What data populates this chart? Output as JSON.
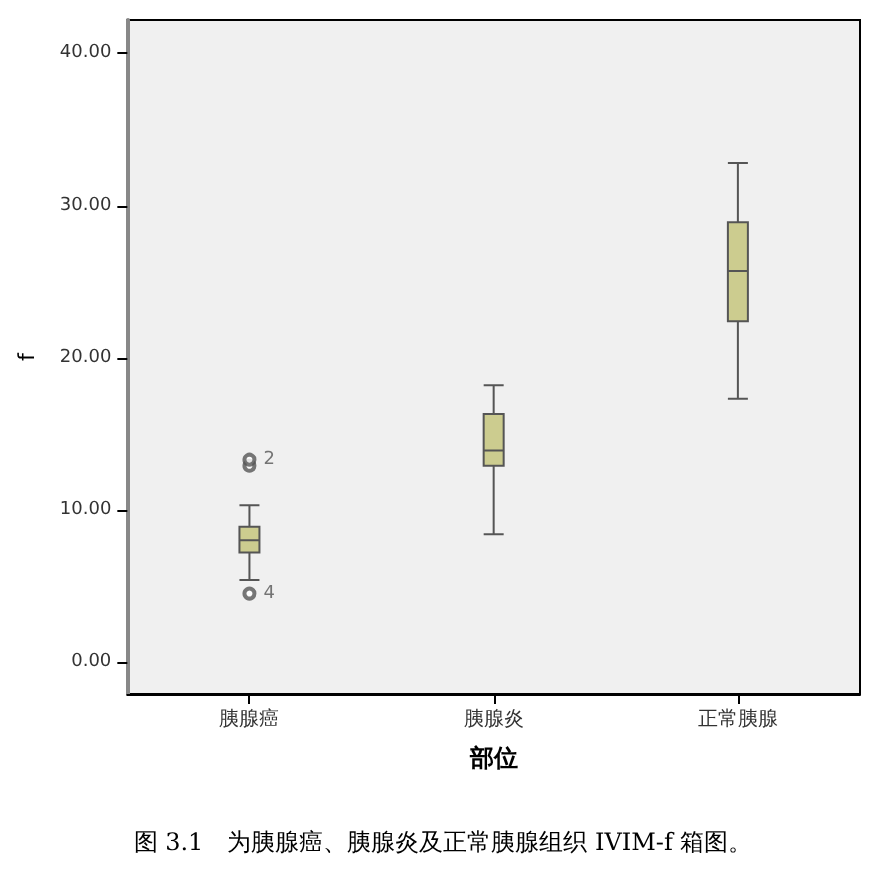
{
  "chart_data": {
    "type": "box",
    "xlabel": "部位",
    "ylabel": "f",
    "categories": [
      "胰腺癌",
      "胰腺炎",
      "正常胰腺"
    ],
    "boxes": [
      {
        "low": 5.4,
        "q1": 7.2,
        "median": 8.0,
        "q3": 8.9,
        "high": 10.3
      },
      {
        "low": 8.4,
        "q1": 12.9,
        "median": 13.9,
        "q3": 16.3,
        "high": 18.2
      },
      {
        "low": 17.3,
        "q1": 22.4,
        "median": 25.7,
        "q3": 28.9,
        "high": 32.8
      }
    ],
    "color": "#cccc8f",
    "series": [
      {
        "type": "scatter",
        "x": [
          "胰腺癌",
          "胰腺癌",
          "胰腺癌"
        ],
        "values": [
          4.5,
          12.9,
          13.3
        ],
        "color": "#555555"
      }
    ],
    "ylim": [
      -2.1,
      42.2
    ],
    "yticks": [
      {
        "value": 0,
        "label": "0.00"
      },
      {
        "value": 10,
        "label": "10.00"
      },
      {
        "value": 20,
        "label": "20.00"
      },
      {
        "value": 30,
        "label": "30.00"
      },
      {
        "value": 40,
        "label": "40.00"
      }
    ],
    "annotations": [
      {
        "text": "2",
        "x": "胰腺癌",
        "y": 13.3
      },
      {
        "text": "4",
        "x": "胰腺癌",
        "y": 4.5
      },
      "图 3.1　为胰腺癌、胰腺炎及正常胰腺组织 IVIM-f 箱图。"
    ],
    "grid": false
  }
}
